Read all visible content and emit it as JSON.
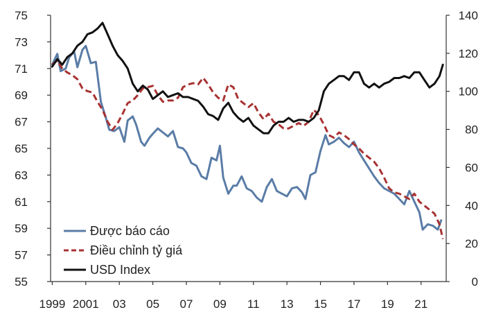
{
  "chart_data": {
    "type": "line",
    "title": "",
    "xlabel": "",
    "ylabel_left": "",
    "ylabel_right": "",
    "x_tick_labels": [
      "1999",
      "2001",
      "03",
      "05",
      "07",
      "09",
      "11",
      "13",
      "15",
      "17",
      "19",
      "21"
    ],
    "x_tick_years": [
      1999,
      2001,
      2003,
      2005,
      2007,
      2009,
      2011,
      2013,
      2015,
      2017,
      2019,
      2021
    ],
    "xlim": [
      1998.9,
      2022.5
    ],
    "ylim_left": [
      55,
      75
    ],
    "ylim_right": [
      0,
      140
    ],
    "left_ticks": [
      55,
      57,
      59,
      61,
      63,
      65,
      67,
      69,
      71,
      73,
      75
    ],
    "right_ticks": [
      0,
      20,
      40,
      60,
      80,
      100,
      120,
      140
    ],
    "legend_position": "bottom-left",
    "grid": false,
    "series": [
      {
        "name": "Được báo cáo",
        "axis": "left",
        "color": "#5a7ca6",
        "dash": "solid",
        "x": [
          1999.0,
          1999.3,
          1999.5,
          1999.8,
          2000.0,
          2000.3,
          2000.5,
          2000.8,
          2001.0,
          2001.3,
          2001.6,
          2001.9,
          2002.2,
          2002.4,
          2002.7,
          2003.0,
          2003.3,
          2003.5,
          2003.8,
          2004.0,
          2004.3,
          2004.5,
          2004.8,
          2005.0,
          2005.3,
          2005.6,
          2005.9,
          2006.2,
          2006.5,
          2006.8,
          2007.0,
          2007.3,
          2007.6,
          2007.9,
          2008.2,
          2008.5,
          2008.8,
          2009.0,
          2009.2,
          2009.5,
          2009.8,
          2010.0,
          2010.3,
          2010.6,
          2010.9,
          2011.2,
          2011.5,
          2011.8,
          2012.1,
          2012.4,
          2012.7,
          2013.0,
          2013.3,
          2013.6,
          2013.9,
          2014.1,
          2014.4,
          2014.7,
          2015.0,
          2015.3,
          2015.5,
          2015.8,
          2016.1,
          2016.4,
          2016.7,
          2017.0,
          2017.3,
          2017.6,
          2017.9,
          2018.2,
          2018.5,
          2018.8,
          2019.1,
          2019.4,
          2019.7,
          2020.0,
          2020.3,
          2020.6,
          2020.9,
          2021.1,
          2021.4,
          2021.7,
          2022.0,
          2022.2
        ],
        "values": [
          71.3,
          72.1,
          70.8,
          71.0,
          71.8,
          72.3,
          71.1,
          72.4,
          72.7,
          71.4,
          71.5,
          68.5,
          67.3,
          66.4,
          66.3,
          66.6,
          65.5,
          67.1,
          67.4,
          66.8,
          65.5,
          65.2,
          65.8,
          66.1,
          66.5,
          66.2,
          65.9,
          66.3,
          65.1,
          65.0,
          64.7,
          63.9,
          63.7,
          62.9,
          62.7,
          64.3,
          64.1,
          65.2,
          62.8,
          61.6,
          62.2,
          62.2,
          62.9,
          62.0,
          61.8,
          61.3,
          61.0,
          62.1,
          62.7,
          61.8,
          61.6,
          61.4,
          62.0,
          62.1,
          61.7,
          61.2,
          63.0,
          63.2,
          64.8,
          66.0,
          65.3,
          65.5,
          65.8,
          65.4,
          65.1,
          65.5,
          64.7,
          64.1,
          63.5,
          62.9,
          62.4,
          62.0,
          61.8,
          61.6,
          61.2,
          60.8,
          61.8,
          61.0,
          60.2,
          58.9,
          59.3,
          59.2,
          58.9,
          59.6
        ]
      },
      {
        "name": "Điều chỉnh tỷ giá",
        "axis": "left",
        "color": "#a83232",
        "dash": "dashed",
        "x": [
          1999.0,
          1999.3,
          1999.6,
          1999.9,
          2000.2,
          2000.5,
          2000.8,
          2001.1,
          2001.4,
          2001.7,
          2002.0,
          2002.3,
          2002.6,
          2002.9,
          2003.2,
          2003.5,
          2003.8,
          2004.1,
          2004.4,
          2004.7,
          2005.0,
          2005.3,
          2005.6,
          2005.9,
          2006.2,
          2006.5,
          2006.8,
          2007.1,
          2007.4,
          2007.7,
          2008.0,
          2008.3,
          2008.6,
          2008.9,
          2009.2,
          2009.5,
          2009.8,
          2010.1,
          2010.4,
          2010.7,
          2011.0,
          2011.3,
          2011.6,
          2011.9,
          2012.2,
          2012.5,
          2012.8,
          2013.1,
          2013.4,
          2013.7,
          2014.0,
          2014.3,
          2014.6,
          2014.9,
          2015.2,
          2015.5,
          2015.8,
          2016.1,
          2016.4,
          2016.7,
          2017.0,
          2017.3,
          2017.6,
          2017.9,
          2018.2,
          2018.5,
          2018.8,
          2019.1,
          2019.4,
          2019.7,
          2020.0,
          2020.3,
          2020.6,
          2020.9,
          2021.2,
          2021.5,
          2021.8,
          2022.1,
          2022.3
        ],
        "values": [
          71.3,
          71.6,
          71.0,
          70.7,
          70.5,
          70.2,
          69.5,
          69.3,
          69.2,
          68.5,
          67.9,
          67.0,
          66.4,
          66.9,
          67.6,
          68.4,
          68.6,
          69.0,
          69.5,
          69.6,
          69.7,
          69.0,
          68.5,
          68.6,
          68.6,
          68.8,
          69.6,
          69.8,
          69.9,
          69.8,
          70.3,
          69.8,
          69.2,
          68.8,
          68.6,
          69.8,
          69.6,
          68.7,
          68.4,
          68.1,
          68.4,
          67.7,
          67.2,
          67.6,
          67.0,
          66.8,
          66.5,
          66.5,
          66.7,
          66.9,
          66.7,
          67.0,
          67.9,
          67.5,
          66.8,
          66.0,
          65.8,
          66.2,
          66.0,
          65.7,
          65.3,
          65.0,
          64.6,
          64.3,
          64.0,
          63.5,
          62.8,
          62.0,
          61.7,
          61.6,
          61.4,
          61.2,
          61.6,
          61.0,
          60.7,
          60.4,
          60.1,
          59.3,
          58.2
        ]
      },
      {
        "name": "USD Index",
        "axis": "right",
        "color": "#111111",
        "dash": "solid",
        "x": [
          1999.0,
          1999.3,
          1999.6,
          1999.9,
          2000.2,
          2000.5,
          2000.8,
          2001.1,
          2001.4,
          2001.7,
          2002.0,
          2002.3,
          2002.6,
          2002.9,
          2003.2,
          2003.5,
          2003.8,
          2004.1,
          2004.4,
          2004.7,
          2005.0,
          2005.3,
          2005.6,
          2005.9,
          2006.2,
          2006.5,
          2006.8,
          2007.1,
          2007.4,
          2007.7,
          2008.0,
          2008.3,
          2008.6,
          2008.9,
          2009.2,
          2009.5,
          2009.8,
          2010.1,
          2010.4,
          2010.7,
          2011.0,
          2011.3,
          2011.6,
          2011.9,
          2012.2,
          2012.5,
          2012.8,
          2013.1,
          2013.4,
          2013.7,
          2014.0,
          2014.3,
          2014.6,
          2014.9,
          2015.2,
          2015.5,
          2015.8,
          2016.1,
          2016.4,
          2016.7,
          2017.0,
          2017.3,
          2017.6,
          2017.9,
          2018.2,
          2018.5,
          2018.8,
          2019.1,
          2019.4,
          2019.7,
          2020.0,
          2020.3,
          2020.6,
          2020.9,
          2021.2,
          2021.5,
          2021.8,
          2022.1,
          2022.3
        ],
        "values": [
          113,
          117,
          114,
          118,
          120,
          124,
          126,
          130,
          131,
          133,
          136,
          130,
          124,
          119,
          116,
          112,
          104,
          100,
          103,
          101,
          96,
          98,
          100,
          97,
          98,
          99,
          97,
          97,
          96,
          95,
          92,
          88,
          87,
          85,
          91,
          94,
          89,
          86,
          84,
          86,
          82,
          80,
          78,
          78,
          82,
          84,
          84,
          86,
          84,
          85,
          85,
          84,
          86,
          90,
          100,
          104,
          106,
          108,
          108,
          106,
          110,
          110,
          104,
          102,
          104,
          102,
          104,
          105,
          107,
          107,
          108,
          107,
          110,
          110,
          106,
          102,
          104,
          108,
          114
        ]
      }
    ]
  }
}
